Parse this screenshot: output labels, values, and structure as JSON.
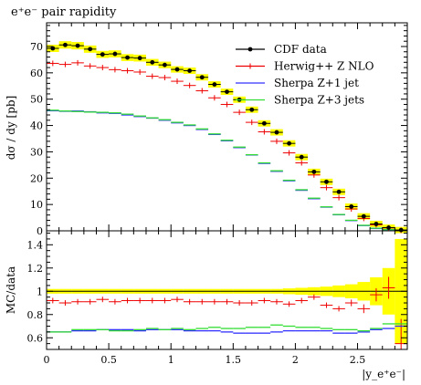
{
  "chart_data": {
    "type": "line",
    "title": "e⁺e⁻ pair rapidity",
    "ylabel": "dσ / dy [pb]",
    "ratio_ylabel": "MC/data",
    "xlabel": "|y_e⁺e⁻|",
    "xlim": [
      0,
      2.9
    ],
    "ylim": [
      0,
      79
    ],
    "ratio_ylim": [
      0.5,
      1.52
    ],
    "xticks": [
      "0",
      "0.5",
      "1",
      "1.5",
      "2",
      "2.5"
    ],
    "yticks": [
      "0",
      "10",
      "20",
      "30",
      "40",
      "50",
      "60",
      "70"
    ],
    "ratio_yticks": [
      "0.6",
      "0.8",
      "1",
      "1.2",
      "1.4"
    ],
    "bin_width": 0.1,
    "data_x": [
      0.05,
      0.15,
      0.25,
      0.35,
      0.45,
      0.55,
      0.65,
      0.75,
      0.85,
      0.95,
      1.05,
      1.15,
      1.25,
      1.35,
      1.45,
      1.55,
      1.65,
      1.75,
      1.85,
      1.95,
      2.05,
      2.15,
      2.25,
      2.35,
      2.45,
      2.55,
      2.65,
      2.75,
      2.85
    ],
    "series": [
      {
        "name": "CDF data",
        "color": "#000000",
        "style": "points",
        "values": [
          69.3,
          70.6,
          70.3,
          69.0,
          67.0,
          67.2,
          65.8,
          65.6,
          64.0,
          63.0,
          61.3,
          60.8,
          58.3,
          55.6,
          52.8,
          49.8,
          46.0,
          40.8,
          37.4,
          33.2,
          28.0,
          22.4,
          18.6,
          14.8,
          9.2,
          5.5,
          2.6,
          1.2,
          0.3
        ]
      },
      {
        "name": "Herwig++ Z NLO",
        "color": "#ee0000",
        "style": "cross",
        "values": [
          63.6,
          63.2,
          63.8,
          62.6,
          62.0,
          61.2,
          60.8,
          60.3,
          58.7,
          58.2,
          56.8,
          55.2,
          53.2,
          50.5,
          48.0,
          45.0,
          41.2,
          37.6,
          34.0,
          29.6,
          25.8,
          21.2,
          16.4,
          12.6,
          8.3,
          4.7,
          2.3,
          1.1,
          0.2
        ]
      },
      {
        "name": "Sherpa Z+1 jet",
        "color": "#3030ff",
        "style": "step",
        "values": [
          45.6,
          45.4,
          45.5,
          45.2,
          44.8,
          44.6,
          44.0,
          43.4,
          42.8,
          42.0,
          41.0,
          40.0,
          38.5,
          36.6,
          34.2,
          31.6,
          28.8,
          25.6,
          22.6,
          19.0,
          15.4,
          12.2,
          9.0,
          6.1,
          3.9,
          2.0,
          0.9,
          0.4,
          0.2
        ]
      },
      {
        "name": "Sherpa Z+3 jets",
        "color": "#33dd33",
        "style": "step",
        "values": [
          45.8,
          45.5,
          45.3,
          45.1,
          45.0,
          44.8,
          44.3,
          43.6,
          42.9,
          42.2,
          41.2,
          40.2,
          38.7,
          36.8,
          34.4,
          31.8,
          28.9,
          25.8,
          22.8,
          19.2,
          15.6,
          12.4,
          9.1,
          6.2,
          4.0,
          2.1,
          1.0,
          0.45,
          0.2
        ]
      }
    ],
    "ratio_series": [
      {
        "name": "Herwig++ Z NLO",
        "color": "#ee0000",
        "values": [
          0.92,
          0.9,
          0.91,
          0.91,
          0.93,
          0.91,
          0.92,
          0.92,
          0.92,
          0.92,
          0.93,
          0.91,
          0.91,
          0.91,
          0.91,
          0.9,
          0.9,
          0.92,
          0.91,
          0.89,
          0.92,
          0.95,
          0.88,
          0.85,
          0.9,
          0.85,
          0.97,
          1.03,
          0.55
        ]
      },
      {
        "name": "Sherpa Z+1 jet",
        "color": "#3030ff",
        "values": [
          0.65,
          0.65,
          0.66,
          0.66,
          0.67,
          0.67,
          0.67,
          0.66,
          0.67,
          0.67,
          0.67,
          0.66,
          0.66,
          0.66,
          0.65,
          0.64,
          0.64,
          0.64,
          0.65,
          0.66,
          0.66,
          0.66,
          0.66,
          0.64,
          0.64,
          0.65,
          0.67,
          0.68,
          0.7
        ]
      },
      {
        "name": "Sherpa Z+3 jets",
        "color": "#33dd33",
        "values": [
          0.65,
          0.65,
          0.67,
          0.67,
          0.67,
          0.66,
          0.66,
          0.67,
          0.68,
          0.67,
          0.68,
          0.67,
          0.68,
          0.69,
          0.68,
          0.68,
          0.69,
          0.69,
          0.71,
          0.7,
          0.69,
          0.69,
          0.68,
          0.67,
          0.67,
          0.66,
          0.68,
          0.72,
          0.72
        ]
      }
    ],
    "ratio_band_halfwidth": [
      0.02,
      0.02,
      0.02,
      0.02,
      0.02,
      0.02,
      0.02,
      0.02,
      0.02,
      0.02,
      0.02,
      0.02,
      0.02,
      0.02,
      0.02,
      0.02,
      0.02,
      0.02,
      0.02,
      0.025,
      0.03,
      0.035,
      0.04,
      0.05,
      0.06,
      0.08,
      0.12,
      0.2,
      0.45
    ],
    "band_color": "#ffff00",
    "legend_position": "top-right"
  }
}
